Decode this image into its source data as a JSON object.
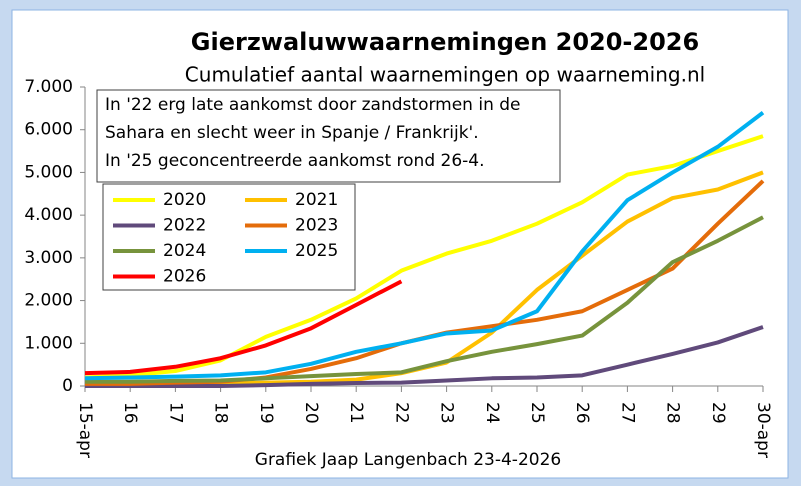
{
  "chart_data": {
    "type": "line",
    "title": "Gierzwaluwwaarnemingen 2020-2026",
    "subtitle": "Cumulatief aantal waarnemingen op waarneming.nl",
    "footer": "Grafiek Jaap Langenbach 23-4-2026",
    "annotation": [
      "In '22  erg late aankomst door zandstormen in de",
      "Sahara en slecht weer in Spanje / Frankrijk'.",
      "In '25 geconcentreerde aankomst rond 26-4."
    ],
    "categories": [
      "15-apr",
      "16",
      "17",
      "18",
      "19",
      "20",
      "21",
      "22",
      "23",
      "24",
      "25",
      "26",
      "27",
      "28",
      "29",
      "30-apr"
    ],
    "ylim": [
      0,
      7000
    ],
    "yticks": [
      0,
      {
        "value": 1000,
        "label": "1.000"
      },
      {
        "value": 2000,
        "label": "2.000"
      },
      {
        "value": 3000,
        "label": "3.000"
      },
      {
        "value": 4000,
        "label": "4.000"
      },
      {
        "value": 5000,
        "label": "5.000"
      },
      {
        "value": 6000,
        "label": "6.000"
      },
      {
        "value": 7000,
        "label": "7.000"
      }
    ],
    "grid": false,
    "series": [
      {
        "name": "2020",
        "color": "#ffff00",
        "values": [
          200,
          250,
          350,
          600,
          1150,
          1550,
          2050,
          2700,
          3100,
          3400,
          3800,
          4300,
          4950,
          5150,
          5500,
          5850
        ]
      },
      {
        "name": "2021",
        "color": "#ffc000",
        "values": [
          50,
          50,
          50,
          50,
          80,
          100,
          150,
          300,
          550,
          1250,
          2250,
          3050,
          3850,
          4400,
          4600,
          5000
        ]
      },
      {
        "name": "2022",
        "color": "#604a7b",
        "values": [
          0,
          0,
          0,
          0,
          20,
          50,
          70,
          80,
          130,
          180,
          200,
          250,
          500,
          750,
          1020,
          1380
        ]
      },
      {
        "name": "2023",
        "color": "#e46c0a",
        "values": [
          50,
          50,
          80,
          100,
          200,
          400,
          650,
          1000,
          1250,
          1400,
          1550,
          1750,
          2250,
          2750,
          3800,
          4800
        ]
      },
      {
        "name": "2024",
        "color": "#77933c",
        "values": [
          100,
          100,
          120,
          130,
          180,
          230,
          280,
          320,
          580,
          800,
          980,
          1180,
          1950,
          2900,
          3400,
          3950
        ]
      },
      {
        "name": "2025",
        "color": "#00b0f0",
        "values": [
          180,
          200,
          220,
          250,
          320,
          520,
          800,
          1000,
          1230,
          1300,
          1750,
          3150,
          4350,
          5000,
          5600,
          6400
        ]
      },
      {
        "name": "2026",
        "color": "#ff0000",
        "values": [
          300,
          330,
          450,
          650,
          950,
          1350,
          1900,
          2450,
          null,
          null,
          null,
          null,
          null,
          null,
          null,
          null
        ]
      }
    ]
  }
}
